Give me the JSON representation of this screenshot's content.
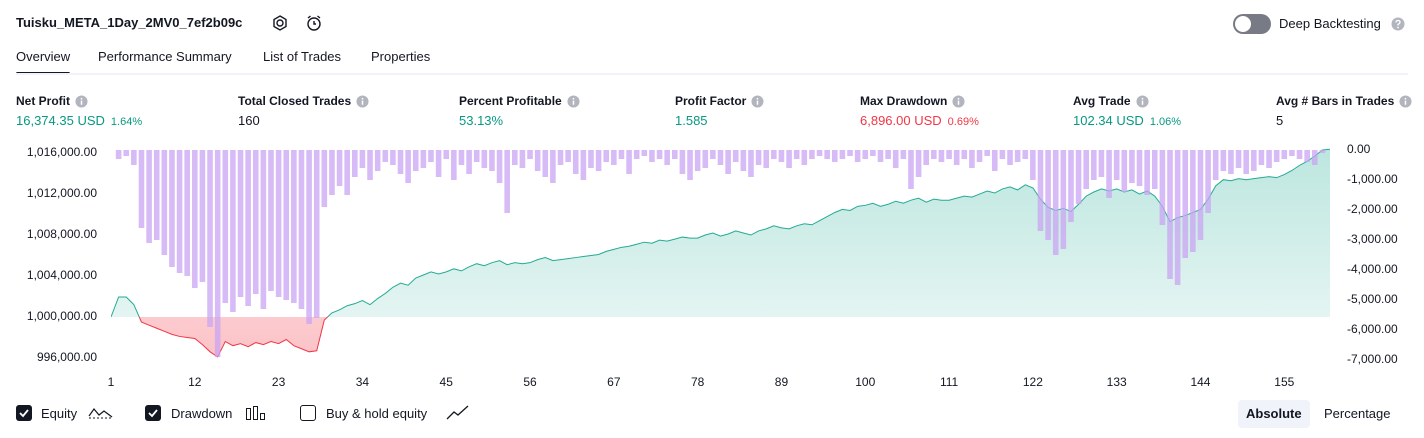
{
  "header": {
    "title": "Tuisku_META_1Day_2MV0_7ef2b09c",
    "toggle_label": "Deep Backtesting",
    "toggle_on": false
  },
  "tabs": [
    "Overview",
    "Performance Summary",
    "List of Trades",
    "Properties"
  ],
  "active_tab": 0,
  "metrics": [
    {
      "label": "Net Profit",
      "value": "16,374.35 USD",
      "percent": "1.64%",
      "color": "#089981"
    },
    {
      "label": "Total Closed Trades",
      "value": "160",
      "color": "#131722"
    },
    {
      "label": "Percent Profitable",
      "value": "53.13%",
      "color": "#089981"
    },
    {
      "label": "Profit Factor",
      "value": "1.585",
      "color": "#089981"
    },
    {
      "label": "Max Drawdown",
      "value": "6,896.00 USD",
      "percent": "0.69%",
      "color": "#f23645"
    },
    {
      "label": "Avg Trade",
      "value": "102.34 USD",
      "percent": "1.06%",
      "color": "#089981"
    },
    {
      "label": "Avg # Bars in Trades",
      "value": "5",
      "color": "#131722"
    }
  ],
  "legend_extra": {
    "label": "Buy & hold equity",
    "checked": false
  },
  "buttons": [
    "Absolute",
    "Percentage"
  ],
  "active_button": 0,
  "chart_data": {
    "type": "line",
    "x": [
      1,
      2,
      3,
      4,
      5,
      6,
      7,
      8,
      9,
      10,
      11,
      12,
      13,
      14,
      15,
      16,
      17,
      18,
      19,
      20,
      21,
      22,
      23,
      24,
      25,
      26,
      27,
      28,
      29,
      30,
      31,
      32,
      33,
      34,
      35,
      36,
      37,
      38,
      39,
      40,
      41,
      42,
      43,
      44,
      45,
      46,
      47,
      48,
      49,
      50,
      51,
      52,
      53,
      54,
      55,
      56,
      57,
      58,
      59,
      60,
      61,
      62,
      63,
      64,
      65,
      66,
      67,
      68,
      69,
      70,
      71,
      72,
      73,
      74,
      75,
      76,
      77,
      78,
      79,
      80,
      81,
      82,
      83,
      84,
      85,
      86,
      87,
      88,
      89,
      90,
      91,
      92,
      93,
      94,
      95,
      96,
      97,
      98,
      99,
      100,
      101,
      102,
      103,
      104,
      105,
      106,
      107,
      108,
      109,
      110,
      111,
      112,
      113,
      114,
      115,
      116,
      117,
      118,
      119,
      120,
      121,
      122,
      123,
      124,
      125,
      126,
      127,
      128,
      129,
      130,
      131,
      132,
      133,
      134,
      135,
      136,
      137,
      138,
      139,
      140,
      141,
      142,
      143,
      144,
      145,
      146,
      147,
      148,
      149,
      150,
      151,
      152,
      153,
      154,
      155,
      156,
      157,
      158,
      159,
      160,
      161
    ],
    "xlim": [
      1,
      161
    ],
    "xticks": [
      1,
      12,
      23,
      34,
      45,
      56,
      67,
      78,
      89,
      100,
      111,
      122,
      133,
      144,
      155
    ],
    "ylim": [
      995800,
      1016300
    ],
    "yticks": [
      {
        "value": 996000,
        "label": "996,000.00"
      },
      {
        "value": 1000000,
        "label": "1,000,000.00"
      },
      {
        "value": 1004000,
        "label": "1,004,000.00"
      },
      {
        "value": 1008000,
        "label": "1,008,000.00"
      },
      {
        "value": 1012000,
        "label": "1,012,000.00"
      },
      {
        "value": 1016000,
        "label": "1,016,000.00"
      }
    ],
    "y2lim": [
      -7000,
      0
    ],
    "y2ticks": [
      {
        "value": 0,
        "label": "0.00"
      },
      {
        "value": -1000,
        "label": "-1,000.00"
      },
      {
        "value": -2000,
        "label": "-2,000.00"
      },
      {
        "value": -3000,
        "label": "-3,000.00"
      },
      {
        "value": -4000,
        "label": "-4,000.00"
      },
      {
        "value": -5000,
        "label": "-5,000.00"
      },
      {
        "value": -6000,
        "label": "-6,000.00"
      },
      {
        "value": -7000,
        "label": "-7,000.00"
      }
    ],
    "series": [
      {
        "name": "Equity",
        "type": "line",
        "checked": true,
        "color": "#22ab94",
        "negative_color": "#f23645",
        "values": [
          1000000,
          1001950,
          1001950,
          1001200,
          999500,
          999200,
          998900,
          998600,
          998300,
          998100,
          998000,
          997900,
          997300,
          996600,
          996100,
          997600,
          997200,
          997400,
          997100,
          997500,
          997300,
          997600,
          997400,
          997800,
          997200,
          996900,
          996600,
          996700,
          999700,
          1000400,
          1000700,
          1001100,
          1001300,
          1001600,
          1001200,
          1001800,
          1002300,
          1002900,
          1003300,
          1003100,
          1003800,
          1004100,
          1004400,
          1004200,
          1004400,
          1004700,
          1004500,
          1004900,
          1005200,
          1005000,
          1005300,
          1005500,
          1005100,
          1005300,
          1005200,
          1005300,
          1005600,
          1005800,
          1005500,
          1005600,
          1005700,
          1005800,
          1005900,
          1006000,
          1006100,
          1006400,
          1006600,
          1006800,
          1006900,
          1007100,
          1007300,
          1007200,
          1007500,
          1007400,
          1007600,
          1007800,
          1007700,
          1007700,
          1008000,
          1008200,
          1007900,
          1008100,
          1008400,
          1008200,
          1008000,
          1008400,
          1008600,
          1008900,
          1008700,
          1008600,
          1008900,
          1009100,
          1009000,
          1009400,
          1009800,
          1010200,
          1010500,
          1010400,
          1010800,
          1010900,
          1011100,
          1010800,
          1011000,
          1011300,
          1011100,
          1011400,
          1011600,
          1011200,
          1011500,
          1011400,
          1011400,
          1011600,
          1011800,
          1011700,
          1012000,
          1012300,
          1012100,
          1012500,
          1012700,
          1012400,
          1012900,
          1012600,
          1011500,
          1010700,
          1010400,
          1010600,
          1010300,
          1011000,
          1011800,
          1012200,
          1012500,
          1012300,
          1012500,
          1012200,
          1012400,
          1012000,
          1012300,
          1011800,
          1010800,
          1009300,
          1009700,
          1009900,
          1010200,
          1010500,
          1011500,
          1012800,
          1013400,
          1013300,
          1013500,
          1013400,
          1013500,
          1013600,
          1013700,
          1013600,
          1013900,
          1014300,
          1014800,
          1015200,
          1015700,
          1016300,
          1016374
        ]
      },
      {
        "name": "Drawdown",
        "type": "bar",
        "axis": "y2",
        "checked": true,
        "color": "#c9a4f3",
        "values": [
          0,
          -300,
          -200,
          -500,
          -2600,
          -3100,
          -3000,
          -3500,
          -3900,
          -4100,
          -4200,
          -4600,
          -4400,
          -5900,
          -6900,
          -5100,
          -5400,
          -4900,
          -5200,
          -4800,
          -5300,
          -4700,
          -4900,
          -5000,
          -5100,
          -5300,
          -5800,
          -5600,
          -1900,
          -1500,
          -1200,
          -1500,
          -900,
          -600,
          -1000,
          -700,
          -400,
          -500,
          -800,
          -1100,
          -700,
          -600,
          -400,
          -900,
          -300,
          -1000,
          -500,
          -800,
          -400,
          -600,
          -700,
          -1100,
          -2100,
          -500,
          -600,
          -300,
          -700,
          -900,
          -1100,
          -500,
          -400,
          -800,
          -1000,
          -600,
          -700,
          -400,
          -500,
          -300,
          -800,
          -300,
          -200,
          -400,
          -300,
          -500,
          -300,
          -800,
          -1000,
          -700,
          -600,
          -300,
          -500,
          -800,
          -400,
          -700,
          -900,
          -500,
          -600,
          -300,
          -400,
          -600,
          -300,
          -500,
          -300,
          -200,
          -300,
          -400,
          -300,
          -200,
          -400,
          -300,
          -200,
          -400,
          -300,
          -600,
          -300,
          -1300,
          -900,
          -500,
          -300,
          -400,
          -300,
          -500,
          -300,
          -600,
          -400,
          -200,
          -700,
          -300,
          -500,
          -400,
          -300,
          -1000,
          -2700,
          -3000,
          -3500,
          -3300,
          -2400,
          -1800,
          -1300,
          -1000,
          -900,
          -1600,
          -1000,
          -1400,
          -1100,
          -1200,
          -1500,
          -1300,
          -2500,
          -4300,
          -4500,
          -3600,
          -3400,
          -3000,
          -2100,
          -1000,
          -700,
          -800,
          -600,
          -800,
          -700,
          -500,
          -600,
          -400,
          -300,
          -200,
          -300,
          -400,
          -500,
          -100,
          0
        ]
      }
    ]
  }
}
